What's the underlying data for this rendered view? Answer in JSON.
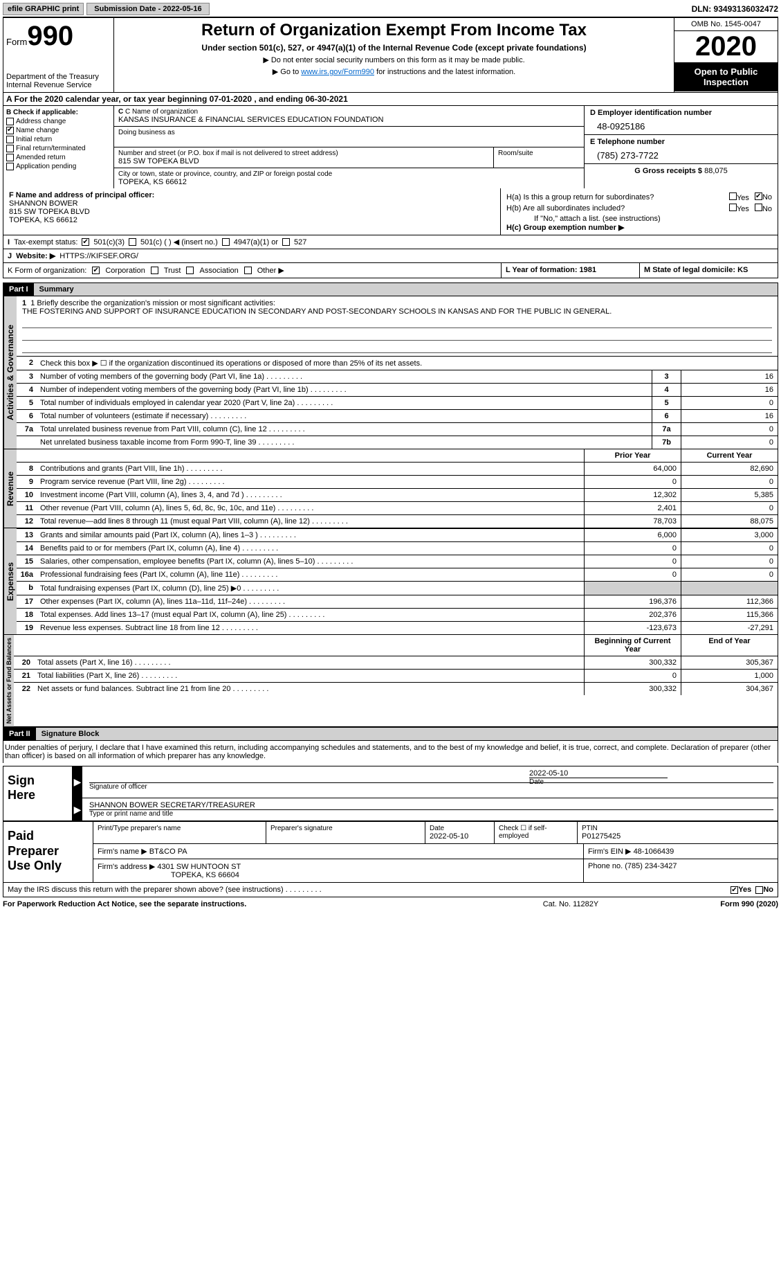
{
  "topbar": {
    "efile_btn": "efile GRAPHIC print",
    "submission": "Submission Date - 2022-05-16",
    "dln": "DLN: 93493136032472"
  },
  "header": {
    "form_label": "Form",
    "form_number": "990",
    "dept": "Department of the Treasury\nInternal Revenue Service",
    "title": "Return of Organization Exempt From Income Tax",
    "subtitle": "Under section 501(c), 527, or 4947(a)(1) of the Internal Revenue Code (except private foundations)",
    "note1": "▶ Do not enter social security numbers on this form as it may be made public.",
    "note2_pre": "▶ Go to ",
    "note2_link": "www.irs.gov/Form990",
    "note2_post": " for instructions and the latest information.",
    "omb": "OMB No. 1545-0047",
    "year": "2020",
    "open": "Open to Public Inspection"
  },
  "period": "A For the 2020 calendar year, or tax year beginning 07-01-2020   , and ending 06-30-2021",
  "b_checks": {
    "label": "B Check if applicable:",
    "items": [
      "Address change",
      "Name change",
      "Initial return",
      "Final return/terminated",
      "Amended return",
      "Application pending"
    ],
    "checked_index": 1
  },
  "c": {
    "label": "C Name of organization",
    "org_name": "KANSAS INSURANCE & FINANCIAL SERVICES EDUCATION FOUNDATION",
    "dba_label": "Doing business as",
    "addr_label": "Number and street (or P.O. box if mail is not delivered to street address)",
    "addr": "815 SW TOPEKA BLVD",
    "room_label": "Room/suite",
    "city_label": "City or town, state or province, country, and ZIP or foreign postal code",
    "city": "TOPEKA, KS  66612"
  },
  "d": {
    "label": "D Employer identification number",
    "value": "48-0925186"
  },
  "e": {
    "label": "E Telephone number",
    "value": "(785) 273-7722"
  },
  "g": {
    "label": "G Gross receipts $",
    "value": "88,075"
  },
  "f": {
    "label": "F  Name and address of principal officer:",
    "name": "SHANNON BOWER",
    "addr1": "815 SW TOPEKA BLVD",
    "addr2": "TOPEKA, KS  66612"
  },
  "h": {
    "a_label": "H(a)  Is this a group return for subordinates?",
    "b_label": "H(b)  Are all subordinates included?",
    "b_note": "If \"No,\" attach a list. (see instructions)",
    "c_label": "H(c)  Group exemption number ▶",
    "yes": "Yes",
    "no": "No"
  },
  "i": {
    "label": "I",
    "text": "Tax-exempt status:",
    "opts": [
      "501(c)(3)",
      "501(c) (  ) ◀ (insert no.)",
      "4947(a)(1) or",
      "527"
    ]
  },
  "j": {
    "label": "J",
    "text": "Website: ▶",
    "value": "HTTPS://KIFSEF.ORG/"
  },
  "k": {
    "label": "K Form of organization:",
    "opts": [
      "Corporation",
      "Trust",
      "Association",
      "Other ▶"
    ]
  },
  "l": {
    "text": "L Year of formation: 1981"
  },
  "m": {
    "text": "M State of legal domicile: KS"
  },
  "part1": {
    "hdr": "Part I",
    "title": "Summary"
  },
  "mission": {
    "label": "1  Briefly describe the organization's mission or most significant activities:",
    "text": "THE FOSTERING AND SUPPORT OF INSURANCE EDUCATION IN SECONDARY AND POST-SECONDARY SCHOOLS IN KANSAS AND FOR THE PUBLIC IN GENERAL."
  },
  "line2": "Check this box ▶ ☐  if the organization discontinued its operations or disposed of more than 25% of its net assets.",
  "gov_lines": [
    {
      "n": "3",
      "t": "Number of voting members of the governing body (Part VI, line 1a)",
      "box": "3",
      "v": "16"
    },
    {
      "n": "4",
      "t": "Number of independent voting members of the governing body (Part VI, line 1b)",
      "box": "4",
      "v": "16"
    },
    {
      "n": "5",
      "t": "Total number of individuals employed in calendar year 2020 (Part V, line 2a)",
      "box": "5",
      "v": "0"
    },
    {
      "n": "6",
      "t": "Total number of volunteers (estimate if necessary)",
      "box": "6",
      "v": "16"
    },
    {
      "n": "7a",
      "t": "Total unrelated business revenue from Part VIII, column (C), line 12",
      "box": "7a",
      "v": "0"
    },
    {
      "n": "",
      "t": "Net unrelated business taxable income from Form 990-T, line 39",
      "box": "7b",
      "v": "0"
    }
  ],
  "col_hdrs": {
    "prior": "Prior Year",
    "current": "Current Year",
    "begin": "Beginning of Current Year",
    "end": "End of Year"
  },
  "rev_lines": [
    {
      "n": "8",
      "t": "Contributions and grants (Part VIII, line 1h)",
      "p": "64,000",
      "c": "82,690"
    },
    {
      "n": "9",
      "t": "Program service revenue (Part VIII, line 2g)",
      "p": "0",
      "c": "0"
    },
    {
      "n": "10",
      "t": "Investment income (Part VIII, column (A), lines 3, 4, and 7d )",
      "p": "12,302",
      "c": "5,385"
    },
    {
      "n": "11",
      "t": "Other revenue (Part VIII, column (A), lines 5, 6d, 8c, 9c, 10c, and 11e)",
      "p": "2,401",
      "c": "0"
    },
    {
      "n": "12",
      "t": "Total revenue—add lines 8 through 11 (must equal Part VIII, column (A), line 12)",
      "p": "78,703",
      "c": "88,075"
    }
  ],
  "exp_lines": [
    {
      "n": "13",
      "t": "Grants and similar amounts paid (Part IX, column (A), lines 1–3 )",
      "p": "6,000",
      "c": "3,000"
    },
    {
      "n": "14",
      "t": "Benefits paid to or for members (Part IX, column (A), line 4)",
      "p": "0",
      "c": "0"
    },
    {
      "n": "15",
      "t": "Salaries, other compensation, employee benefits (Part IX, column (A), lines 5–10)",
      "p": "0",
      "c": "0"
    },
    {
      "n": "16a",
      "t": "Professional fundraising fees (Part IX, column (A), line 11e)",
      "p": "0",
      "c": "0"
    },
    {
      "n": "b",
      "t": "Total fundraising expenses (Part IX, column (D), line 25) ▶0",
      "p": "",
      "c": "",
      "shaded": true
    },
    {
      "n": "17",
      "t": "Other expenses (Part IX, column (A), lines 11a–11d, 11f–24e)",
      "p": "196,376",
      "c": "112,366"
    },
    {
      "n": "18",
      "t": "Total expenses. Add lines 13–17 (must equal Part IX, column (A), line 25)",
      "p": "202,376",
      "c": "115,366"
    },
    {
      "n": "19",
      "t": "Revenue less expenses. Subtract line 18 from line 12",
      "p": "-123,673",
      "c": "-27,291"
    }
  ],
  "net_lines": [
    {
      "n": "20",
      "t": "Total assets (Part X, line 16)",
      "p": "300,332",
      "c": "305,367"
    },
    {
      "n": "21",
      "t": "Total liabilities (Part X, line 26)",
      "p": "0",
      "c": "1,000"
    },
    {
      "n": "22",
      "t": "Net assets or fund balances. Subtract line 21 from line 20",
      "p": "300,332",
      "c": "304,367"
    }
  ],
  "tabs": {
    "gov": "Activities & Governance",
    "rev": "Revenue",
    "exp": "Expenses",
    "net": "Net Assets or Fund Balances"
  },
  "part2": {
    "hdr": "Part II",
    "title": "Signature Block"
  },
  "penalty": "Under penalties of perjury, I declare that I have examined this return, including accompanying schedules and statements, and to the best of my knowledge and belief, it is true, correct, and complete. Declaration of preparer (other than officer) is based on all information of which preparer has any knowledge.",
  "sign": {
    "here": "Sign Here",
    "sig_label": "Signature of officer",
    "date_label": "Date",
    "date_val": "2022-05-10",
    "name_val": "SHANNON BOWER  SECRETARY/TREASURER",
    "name_label": "Type or print name and title"
  },
  "paid": {
    "title": "Paid Preparer Use Only",
    "h1": "Print/Type preparer's name",
    "h2": "Preparer's signature",
    "h3": "Date",
    "h3v": "2022-05-10",
    "h4": "Check ☐ if self-employed",
    "h5": "PTIN",
    "h5v": "P01275425",
    "firm_name_l": "Firm's name    ▶",
    "firm_name": "BT&CO PA",
    "firm_ein_l": "Firm's EIN ▶",
    "firm_ein": "48-1066439",
    "firm_addr_l": "Firm's address ▶",
    "firm_addr1": "4301 SW HUNTOON ST",
    "firm_addr2": "TOPEKA, KS  66604",
    "phone_l": "Phone no.",
    "phone": "(785) 234-3427"
  },
  "discuss": {
    "text": "May the IRS discuss this return with the preparer shown above? (see instructions)",
    "yes": "Yes",
    "no": "No"
  },
  "footer": {
    "left": "For Paperwork Reduction Act Notice, see the separate instructions.",
    "mid": "Cat. No. 11282Y",
    "right": "Form 990 (2020)"
  }
}
